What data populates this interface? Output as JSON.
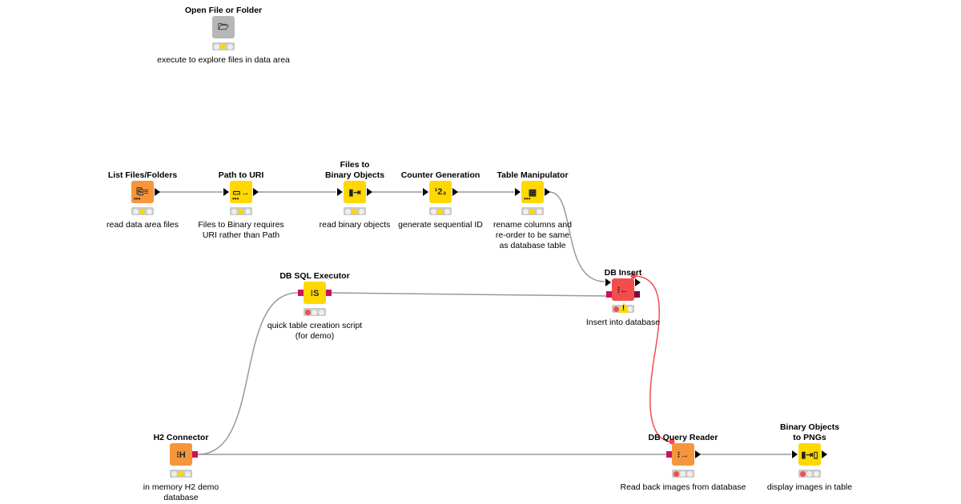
{
  "colors": {
    "source": "#f7953a",
    "manipulator": "#ffd800",
    "db_write": "#f44d4d",
    "visualizer": "#b7b7b7",
    "connection": "#999999",
    "flow_variable": "#f44d4d",
    "db_port": "#c8135e"
  },
  "nodes": [
    {
      "id": "open-file-or-folder",
      "title": "Open File or Folder",
      "description": "execute to explore files in data area",
      "type": "visualizer",
      "icon": "folder-open-icon",
      "glyph": "🗁",
      "status": "configured"
    },
    {
      "id": "list-files-folders",
      "title": "List Files/Folders",
      "description": "read data area files",
      "type": "source",
      "icon": "list-files-icon",
      "glyph": "⎘≡",
      "status": "configured"
    },
    {
      "id": "path-to-uri",
      "title": "Path to URI",
      "description": "Files to Binary requires\nURI rather than Path",
      "type": "manipulator",
      "icon": "path-to-uri-icon",
      "glyph": "▭→",
      "status": "configured"
    },
    {
      "id": "files-to-binary-objects",
      "title": "Files to\nBinary Objects",
      "description": "read binary objects",
      "type": "manipulator",
      "icon": "files-to-binary-icon",
      "glyph": "▮⇥",
      "status": "configured"
    },
    {
      "id": "counter-generation",
      "title": "Counter Generation",
      "description": "generate sequential ID",
      "type": "manipulator",
      "icon": "counter-icon",
      "glyph": "¹2₃",
      "status": "configured"
    },
    {
      "id": "table-manipulator",
      "title": "Table Manipulator",
      "description": "rename columns and\nre-order to be same\nas database table",
      "type": "manipulator",
      "icon": "table-edit-icon",
      "glyph": "▦",
      "status": "configured"
    },
    {
      "id": "db-insert",
      "title": "DB Insert",
      "description": "Insert into database",
      "type": "db_write",
      "icon": "db-insert-icon",
      "glyph": "⁝←",
      "status": "warning"
    },
    {
      "id": "db-sql-executor",
      "title": "DB SQL Executor",
      "description": "quick table creation script\n(for demo)",
      "type": "manipulator",
      "icon": "db-sql-icon",
      "glyph": "⁝S",
      "status": "not-configured"
    },
    {
      "id": "h2-connector",
      "title": "H2 Connector",
      "description": "in memory H2 demo\ndatabase",
      "type": "source",
      "icon": "h2-icon",
      "glyph": "⁝H",
      "status": "configured"
    },
    {
      "id": "db-query-reader",
      "title": "DB Query Reader",
      "description": "Read back images from database",
      "type": "source",
      "icon": "db-query-icon",
      "glyph": "⁝→",
      "status": "not-configured"
    },
    {
      "id": "binary-objects-to-pngs",
      "title": "Binary Objects\nto PNGs",
      "description": "display images in table",
      "type": "manipulator",
      "icon": "binary-to-png-icon",
      "glyph": "▮⇥▯",
      "status": "not-configured"
    }
  ]
}
